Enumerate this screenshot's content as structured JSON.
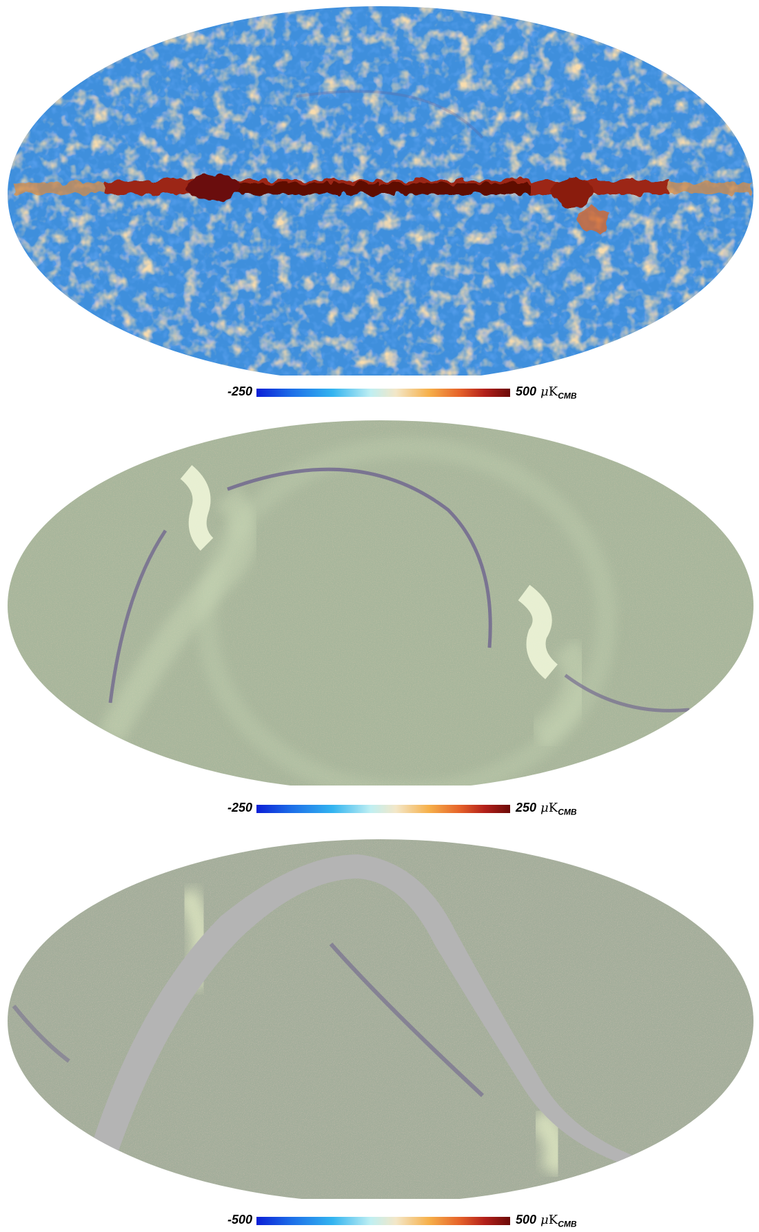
{
  "colorscale": [
    "#0b1fd6",
    "#1d6fe8",
    "#33b4f0",
    "#bfeff2",
    "#f3e7c8",
    "#f6b04a",
    "#e6632a",
    "#b3201a",
    "#6b0a08"
  ],
  "colors": {
    "cmb_blue": "#2e7fd8",
    "cmb_orange": "#e2a35e",
    "galactic_band": "#7a1a0a",
    "noise_green": "#a8b79a",
    "mask_gray": "#b4b4b4",
    "scan_purple": "#6a5d8d"
  },
  "panels": [
    {
      "colorbar": {
        "min": "-250",
        "max": "500",
        "unit_prefix": "μ",
        "unit_letter": "K",
        "unit_sub": "CMB"
      }
    },
    {
      "colorbar": {
        "min": "-250",
        "max": "250",
        "unit_prefix": "μ",
        "unit_letter": "K",
        "unit_sub": "CMB"
      }
    },
    {
      "colorbar": {
        "min": "-500",
        "max": "500",
        "unit_prefix": "μ",
        "unit_letter": "K",
        "unit_sub": "CMB"
      }
    }
  ]
}
